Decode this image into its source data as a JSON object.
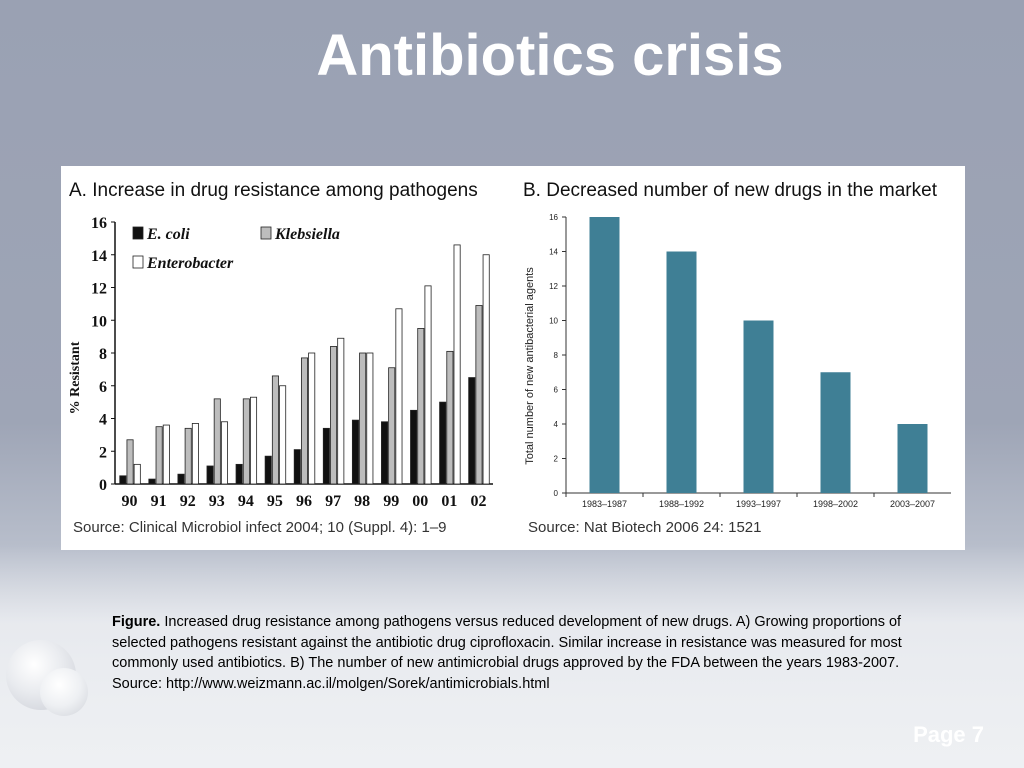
{
  "slide": {
    "title": "Antibiotics crisis",
    "page_label": "Page 7"
  },
  "caption": {
    "lead": "Figure.",
    "text": "Increased drug resistance among pathogens versus reduced development of new drugs. A) Growing proportions of selected pathogens resistant against the antibiotic drug ciprofloxacin. Similar increase in resistance was measured for most commonly used antibiotics. B) The number of new antimicrobial drugs approved by the FDA between the years 1983-2007.",
    "source": "Source: http://www.weizmann.ac.il/molgen/Sorek/antimicrobials.html"
  },
  "chart_data": [
    {
      "type": "bar",
      "title": "A. Increase in drug resistance among pathogens",
      "ylabel": "% Resistant",
      "xlabel": "",
      "ylim": [
        0,
        16
      ],
      "yticks": [
        0,
        2,
        4,
        6,
        8,
        10,
        12,
        14,
        16
      ],
      "categories": [
        "90",
        "91",
        "92",
        "93",
        "94",
        "95",
        "96",
        "97",
        "98",
        "99",
        "00",
        "01",
        "02"
      ],
      "series": [
        {
          "name": "E. coli",
          "color": "#111111",
          "values": [
            0.5,
            0.3,
            0.6,
            1.1,
            1.2,
            1.7,
            2.1,
            3.4,
            3.9,
            3.8,
            4.5,
            5.0,
            6.5
          ]
        },
        {
          "name": "Klebsiella",
          "color": "#bdbdbd",
          "values": [
            2.7,
            3.5,
            3.4,
            5.2,
            5.2,
            6.6,
            7.7,
            8.4,
            8.0,
            7.1,
            9.5,
            8.1,
            10.9
          ]
        },
        {
          "name": "Enterobacter",
          "color": "#ffffff",
          "values": [
            1.2,
            3.6,
            3.7,
            3.8,
            5.3,
            6.0,
            8.0,
            8.9,
            8.0,
            10.7,
            12.1,
            14.6,
            14.0
          ]
        }
      ],
      "legend": "top-left",
      "source": "Source: Clinical Microbiol infect 2004; 10 (Suppl. 4): 1–9"
    },
    {
      "type": "bar",
      "title": "B. Decreased number of new drugs in the market",
      "ylabel": "Total number of new antibacterial agents",
      "xlabel": "",
      "ylim": [
        0,
        16
      ],
      "yticks": [
        0,
        2,
        4,
        6,
        8,
        10,
        12,
        14,
        16
      ],
      "categories": [
        "1983–1987",
        "1988–1992",
        "1993–1997",
        "1998–2002",
        "2003–2007"
      ],
      "values": [
        16,
        14,
        10,
        7,
        4
      ],
      "color": "#3f7f95",
      "source": "Source: Nat Biotech 2006 24: 1521"
    }
  ]
}
